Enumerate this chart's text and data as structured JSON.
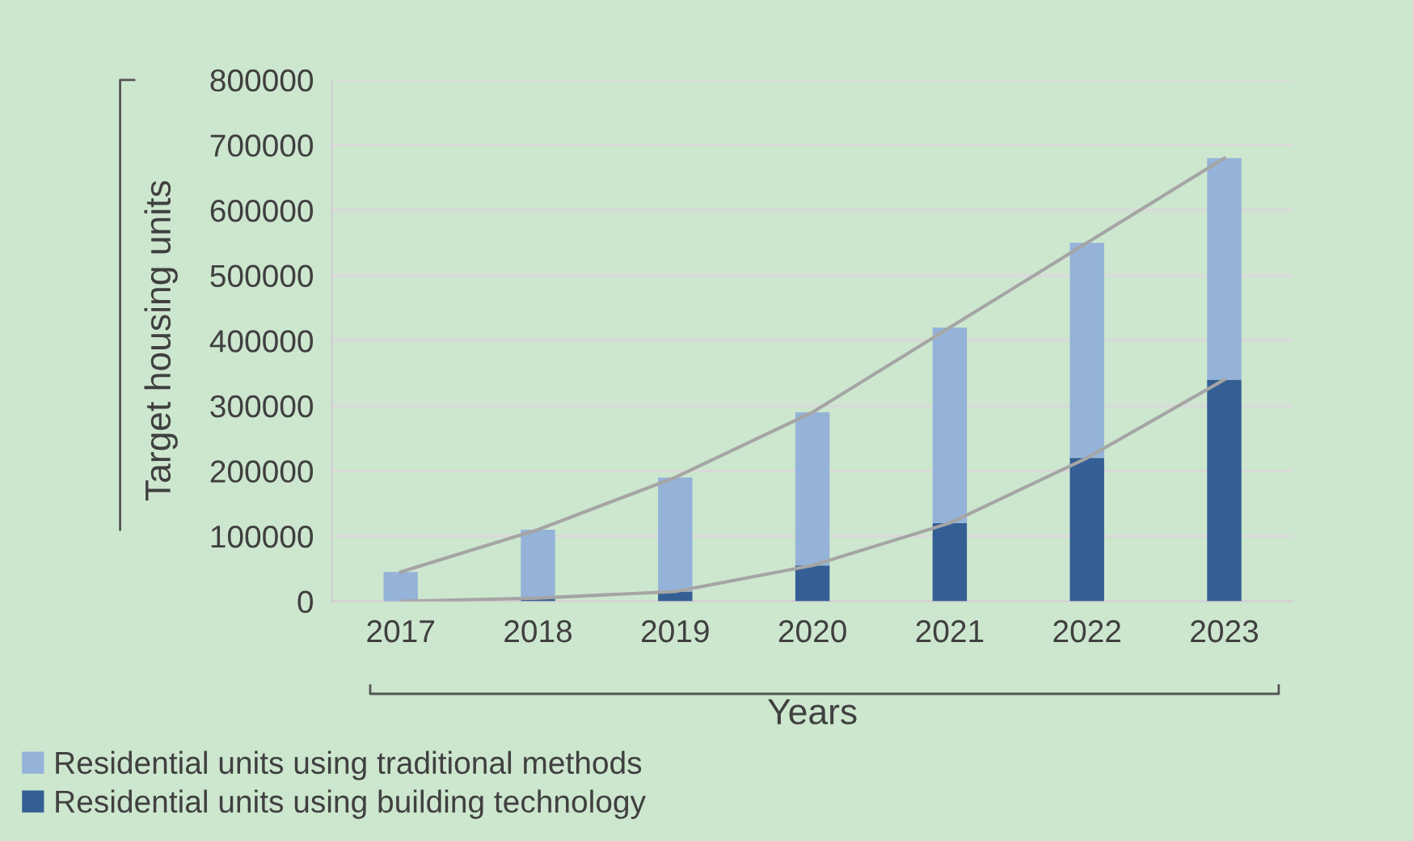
{
  "chart_data": {
    "type": "bar",
    "stacked": true,
    "xlabel": "Years",
    "ylabel": "Target housing units",
    "categories": [
      "2017",
      "2018",
      "2019",
      "2020",
      "2021",
      "2022",
      "2023"
    ],
    "series": [
      {
        "name": "Residential units using building technology",
        "color": "#345f94",
        "values": [
          0,
          5000,
          15000,
          55000,
          120000,
          220000,
          340000
        ]
      },
      {
        "name": "Residential units using traditional methods",
        "color": "#95b3d9",
        "values": [
          45000,
          105000,
          175000,
          235000,
          300000,
          330000,
          340000
        ]
      },
      {
        "type": "line",
        "color": "#a5a5a5",
        "values": [
          0,
          5000,
          15000,
          55000,
          120000,
          220000,
          340000
        ]
      },
      {
        "type": "line",
        "color": "#a5a5a5",
        "values": [
          45000,
          110000,
          190000,
          290000,
          420000,
          550000,
          680000
        ]
      }
    ],
    "ylim": [
      0,
      800000
    ],
    "yticks": [
      0,
      100000,
      200000,
      300000,
      400000,
      500000,
      600000,
      700000,
      800000
    ],
    "grid": "y",
    "legend": "bottom left",
    "marker": "none",
    "line_style": "solid"
  }
}
